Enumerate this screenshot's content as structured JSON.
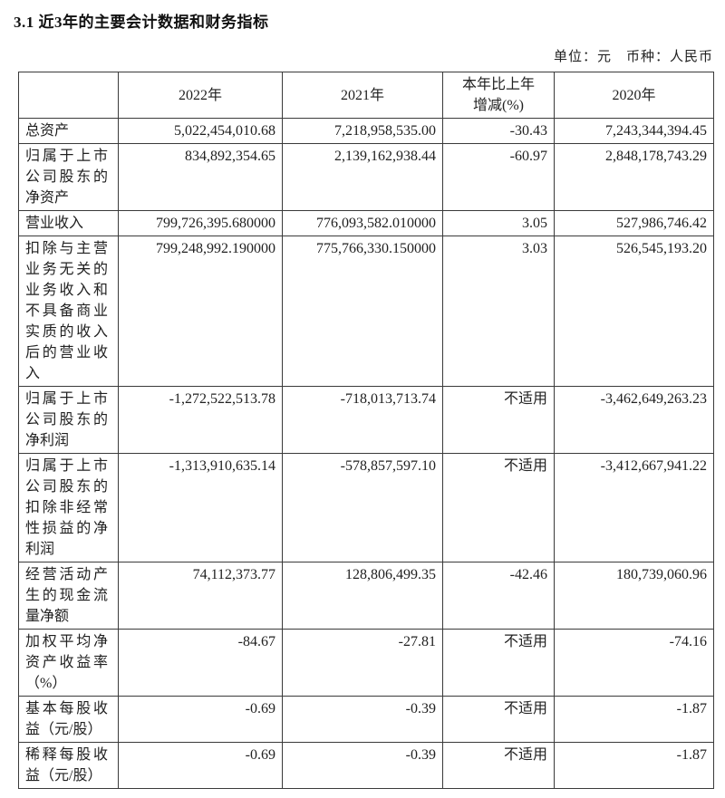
{
  "page": {
    "section_title": "3.1 近3年的主要会计数据和财务指标",
    "unit_note": "单位：元　币种：人民币"
  },
  "table": {
    "columns": [
      "",
      "2022年",
      "2021年",
      "本年比上年\n增减(%)",
      "2020年"
    ],
    "rows": [
      {
        "label": "总资产",
        "v2022": "5,022,454,010.68",
        "v2021": "7,218,958,535.00",
        "change": "-30.43",
        "v2020": "7,243,344,394.45"
      },
      {
        "label": "归属于上市公司股东的净资产",
        "v2022": "834,892,354.65",
        "v2021": "2,139,162,938.44",
        "change": "-60.97",
        "v2020": "2,848,178,743.29"
      },
      {
        "label": "营业收入",
        "v2022": "799,726,395.680000",
        "v2021": "776,093,582.010000",
        "change": "3.05",
        "v2020": "527,986,746.42"
      },
      {
        "label": "扣除与主营业务无关的业务收入和不具备商业实质的收入后的营业收入",
        "v2022": "799,248,992.190000",
        "v2021": "775,766,330.150000",
        "change": "3.03",
        "v2020": "526,545,193.20"
      },
      {
        "label": "归属于上市公司股东的净利润",
        "v2022": "-1,272,522,513.78",
        "v2021": "-718,013,713.74",
        "change": "不适用",
        "v2020": "-3,462,649,263.23"
      },
      {
        "label": "归属于上市公司股东的扣除非经常性损益的净利润",
        "v2022": "-1,313,910,635.14",
        "v2021": "-578,857,597.10",
        "change": "不适用",
        "v2020": "-3,412,667,941.22"
      },
      {
        "label": "经营活动产生的现金流量净额",
        "v2022": "74,112,373.77",
        "v2021": "128,806,499.35",
        "change": "-42.46",
        "v2020": "180,739,060.96"
      },
      {
        "label": "加权平均净资产收益率（%）",
        "v2022": "-84.67",
        "v2021": "-27.81",
        "change": "不适用",
        "v2020": "-74.16"
      },
      {
        "label": "基本每股收益（元/股）",
        "v2022": "-0.69",
        "v2021": "-0.39",
        "change": "不适用",
        "v2020": "-1.87"
      },
      {
        "label": "稀释每股收益（元/股）",
        "v2022": "-0.69",
        "v2021": "-0.39",
        "change": "不适用",
        "v2020": "-1.87"
      }
    ]
  }
}
